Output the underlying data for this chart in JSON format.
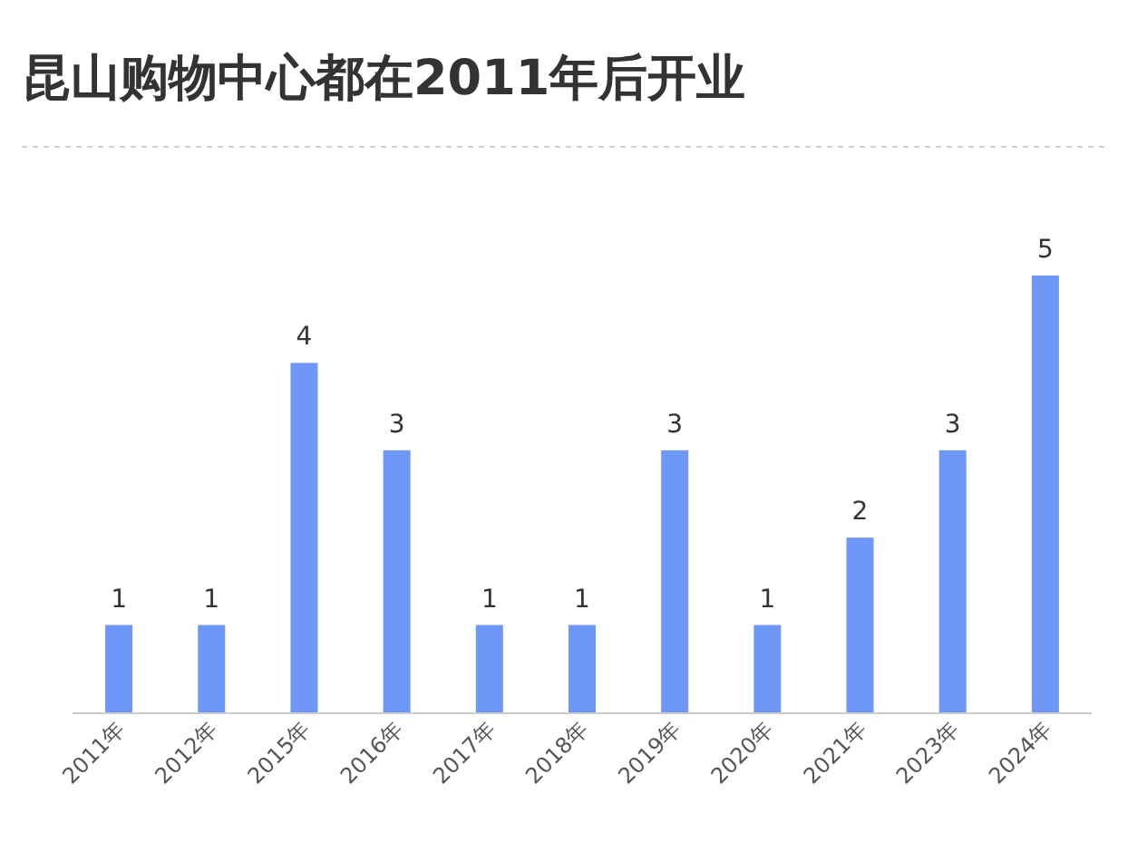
{
  "chart_data": {
    "type": "bar",
    "title": "昆山购物中心都在2011年后开业",
    "categories": [
      "2011年",
      "2012年",
      "2015年",
      "2016年",
      "2017年",
      "2018年",
      "2019年",
      "2020年",
      "2021年",
      "2023年",
      "2024年"
    ],
    "values": [
      1,
      1,
      4,
      3,
      1,
      1,
      3,
      1,
      2,
      3,
      5
    ],
    "color": "#6e97f7",
    "data_labels": true,
    "tick_labels": "x"
  }
}
